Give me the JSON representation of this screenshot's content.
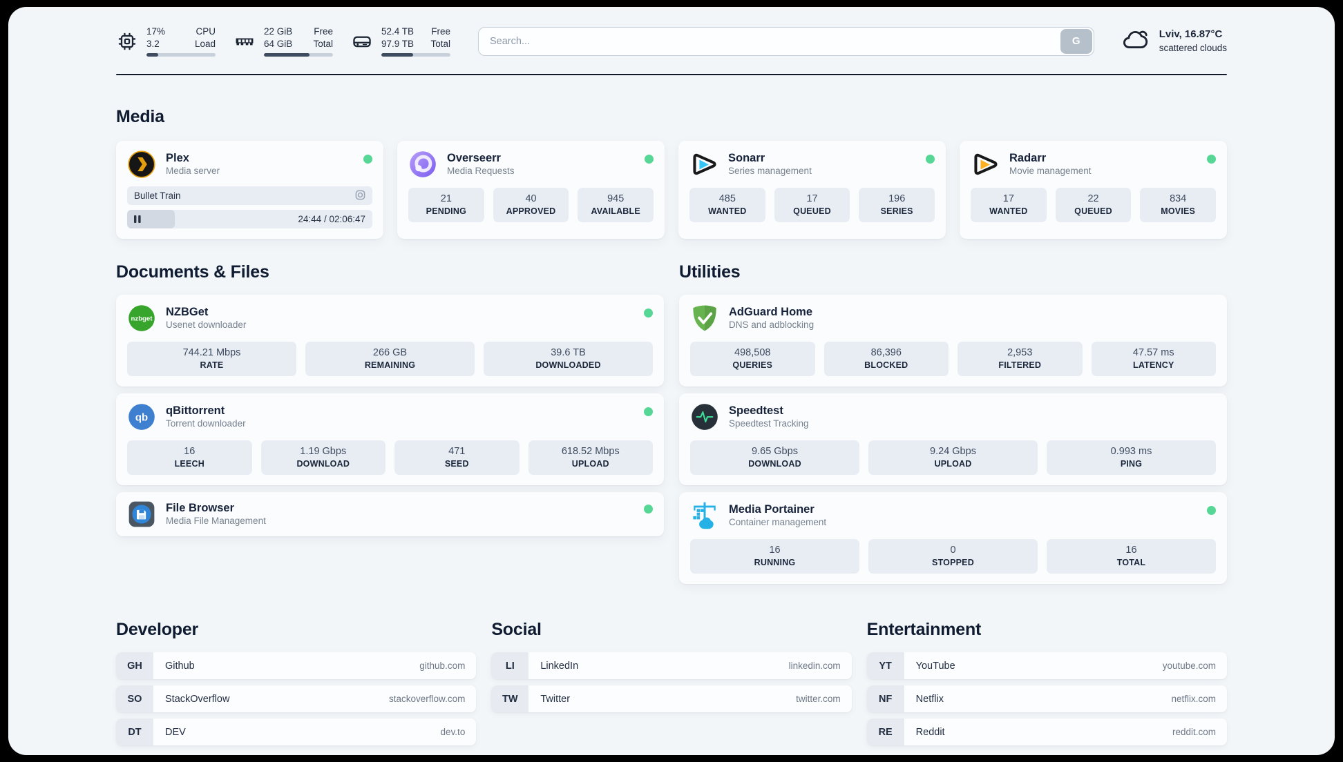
{
  "colors": {
    "status": "#57d796",
    "plex": "#e5a00d",
    "sonarr": "#35c5f4",
    "radarr": "#ffb020",
    "nzbget": "#37a42c",
    "qbittorrent": "#3e7fd0",
    "filebrowser": "#2f86d8",
    "adguard": "#67b34f",
    "speedtest": "#3ddc97",
    "portainer": "#24b1e6"
  },
  "header": {
    "resources": [
      {
        "icon": "cpu-icon",
        "rows": [
          {
            "value": "17%",
            "label": "CPU"
          },
          {
            "value": "3.2",
            "label": "Load"
          }
        ],
        "progress_pct": 17
      },
      {
        "icon": "memory-icon",
        "rows": [
          {
            "value": "22 GiB",
            "label": "Free"
          },
          {
            "value": "64 GiB",
            "label": "Total"
          }
        ],
        "progress_pct": 66
      },
      {
        "icon": "disk-icon",
        "rows": [
          {
            "value": "52.4 TB",
            "label": "Free"
          },
          {
            "value": "97.9 TB",
            "label": "Total"
          }
        ],
        "progress_pct": 46
      }
    ],
    "search": {
      "placeholder": "Search...",
      "button_label": "G"
    },
    "weather": {
      "location_temp": "Lviv, 16.87°C",
      "condition": "scattered clouds"
    }
  },
  "section_titles": {
    "media": "Media",
    "documents": "Documents & Files",
    "utilities": "Utilities",
    "developer": "Developer",
    "social": "Social",
    "entertainment": "Entertainment"
  },
  "services": {
    "plex": {
      "name": "Plex",
      "subtitle": "Media server",
      "online": true,
      "now_playing": {
        "title": "Bullet Train",
        "time_display": "24:44 / 02:06:47",
        "progress_pct": 19.5
      }
    },
    "overseerr": {
      "name": "Overseerr",
      "subtitle": "Media Requests",
      "online": true,
      "stats": [
        {
          "value": "21",
          "label": "PENDING"
        },
        {
          "value": "40",
          "label": "APPROVED"
        },
        {
          "value": "945",
          "label": "AVAILABLE"
        }
      ]
    },
    "sonarr": {
      "name": "Sonarr",
      "subtitle": "Series management",
      "online": true,
      "stats": [
        {
          "value": "485",
          "label": "WANTED"
        },
        {
          "value": "17",
          "label": "QUEUED"
        },
        {
          "value": "196",
          "label": "SERIES"
        }
      ]
    },
    "radarr": {
      "name": "Radarr",
      "subtitle": "Movie management",
      "online": true,
      "stats": [
        {
          "value": "17",
          "label": "WANTED"
        },
        {
          "value": "22",
          "label": "QUEUED"
        },
        {
          "value": "834",
          "label": "MOVIES"
        }
      ]
    },
    "nzbget": {
      "name": "NZBGet",
      "subtitle": "Usenet downloader",
      "online": true,
      "icon_text": "nzbget",
      "stats": [
        {
          "value": "744.21 Mbps",
          "label": "RATE"
        },
        {
          "value": "266 GB",
          "label": "REMAINING"
        },
        {
          "value": "39.6 TB",
          "label": "DOWNLOADED"
        }
      ]
    },
    "qbittorrent": {
      "name": "qBittorrent",
      "subtitle": "Torrent downloader",
      "online": true,
      "icon_text": "qb",
      "stats": [
        {
          "value": "16",
          "label": "LEECH"
        },
        {
          "value": "1.19 Gbps",
          "label": "DOWNLOAD"
        },
        {
          "value": "471",
          "label": "SEED"
        },
        {
          "value": "618.52 Mbps",
          "label": "UPLOAD"
        }
      ]
    },
    "filebrowser": {
      "name": "File Browser",
      "subtitle": "Media File Management",
      "online": true
    },
    "adguard": {
      "name": "AdGuard Home",
      "subtitle": "DNS and adblocking",
      "online": false,
      "stats": [
        {
          "value": "498,508",
          "label": "QUERIES"
        },
        {
          "value": "86,396",
          "label": "BLOCKED"
        },
        {
          "value": "2,953",
          "label": "FILTERED"
        },
        {
          "value": "47.57 ms",
          "label": "LATENCY"
        }
      ]
    },
    "speedtest": {
      "name": "Speedtest",
      "subtitle": "Speedtest Tracking",
      "online": false,
      "stats": [
        {
          "value": "9.65 Gbps",
          "label": "DOWNLOAD"
        },
        {
          "value": "9.24 Gbps",
          "label": "UPLOAD"
        },
        {
          "value": "0.993 ms",
          "label": "PING"
        }
      ]
    },
    "portainer": {
      "name": "Media Portainer",
      "subtitle": "Container management",
      "online": true,
      "stats": [
        {
          "value": "16",
          "label": "RUNNING"
        },
        {
          "value": "0",
          "label": "STOPPED"
        },
        {
          "value": "16",
          "label": "TOTAL"
        }
      ]
    }
  },
  "bookmarks": {
    "developer": [
      {
        "abbr": "GH",
        "name": "Github",
        "url": "github.com"
      },
      {
        "abbr": "SO",
        "name": "StackOverflow",
        "url": "stackoverflow.com"
      },
      {
        "abbr": "DT",
        "name": "DEV",
        "url": "dev.to"
      }
    ],
    "social": [
      {
        "abbr": "LI",
        "name": "LinkedIn",
        "url": "linkedin.com"
      },
      {
        "abbr": "TW",
        "name": "Twitter",
        "url": "twitter.com"
      }
    ],
    "entertainment": [
      {
        "abbr": "YT",
        "name": "YouTube",
        "url": "youtube.com"
      },
      {
        "abbr": "NF",
        "name": "Netflix",
        "url": "netflix.com"
      },
      {
        "abbr": "RE",
        "name": "Reddit",
        "url": "reddit.com"
      }
    ]
  }
}
